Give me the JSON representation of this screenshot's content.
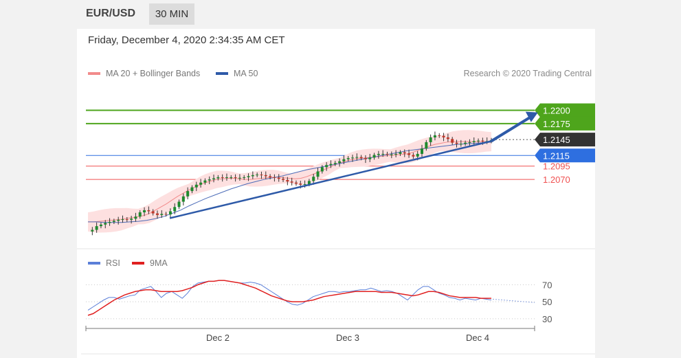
{
  "header": {
    "pair": "EUR/USD",
    "timeframe": "30 MIN"
  },
  "timestamp": "Friday, December 4, 2020 2:34:35 AM CET",
  "legend": {
    "ma20": {
      "label": "MA 20 + Bollinger Bands",
      "color": "#f28b8b"
    },
    "ma50": {
      "label": "MA 50",
      "color": "#2e5aa8"
    },
    "credit": "Research © 2020 Trading Central"
  },
  "rsi_legend": {
    "rsi": {
      "label": "RSI",
      "color": "#5b7fd8"
    },
    "ma9": {
      "label": "9MA",
      "color": "#e02020"
    }
  },
  "chart_data": [
    {
      "type": "candlestick",
      "x_ticks": [
        "Dec 2",
        "Dec 3",
        "Dec 4"
      ],
      "ylim": [
        1.1955,
        1.2255
      ],
      "levels": [
        {
          "value": "1.2200",
          "color": "#4ea51c",
          "kind": "resistance"
        },
        {
          "value": "1.2175",
          "color": "#4ea51c",
          "kind": "resistance"
        },
        {
          "value": "1.2145",
          "color": "#333333",
          "kind": "last"
        },
        {
          "value": "1.2115",
          "color": "#2e6fe0",
          "kind": "pivot"
        },
        {
          "value": "1.2095",
          "color": "#f05050",
          "kind": "support"
        },
        {
          "value": "1.2070",
          "color": "#f05050",
          "kind": "support"
        }
      ],
      "price_path": [
        1.1972,
        1.1975,
        1.1982,
        1.1985,
        1.1988,
        1.199,
        1.1992,
        1.1994,
        1.1995,
        1.1994,
        1.1996,
        1.2,
        1.2008,
        1.2012,
        1.201,
        1.2006,
        1.2003,
        1.2005,
        1.2004,
        1.201,
        1.2018,
        1.2028,
        1.2038,
        1.2048,
        1.2055,
        1.206,
        1.2064,
        1.2068,
        1.207,
        1.2072,
        1.2074,
        1.2073,
        1.2074,
        1.2074,
        1.2073,
        1.2073,
        1.2074,
        1.2076,
        1.2078,
        1.2079,
        1.2078,
        1.2076,
        1.2074,
        1.2073,
        1.2071,
        1.2069,
        1.2066,
        1.2064,
        1.2062,
        1.206,
        1.2061,
        1.2067,
        1.2075,
        1.2085,
        1.2093,
        1.2097,
        1.2099,
        1.2101,
        1.2104,
        1.2108,
        1.211,
        1.2111,
        1.2112,
        1.211,
        1.2108,
        1.2111,
        1.2116,
        1.2118,
        1.2118,
        1.2117,
        1.2117,
        1.2118,
        1.2121,
        1.2119,
        1.2116,
        1.2113,
        1.2118,
        1.2128,
        1.214,
        1.2149,
        1.2153,
        1.2152,
        1.2149,
        1.2146,
        1.2139,
        1.2137,
        1.2137,
        1.2139,
        1.214,
        1.2142,
        1.2143,
        1.2142,
        1.2142,
        1.2144
      ],
      "ma20_path": [
        1.199,
        1.199,
        1.1991,
        1.1992,
        1.1993,
        1.1994,
        1.1995,
        1.1997,
        1.1998,
        1.2,
        1.2002,
        1.2006,
        1.2012,
        1.2018,
        1.2024,
        1.2031,
        1.2038,
        1.2044,
        1.205,
        1.2055,
        1.206,
        1.2064,
        1.2067,
        1.207,
        1.2071,
        1.2072,
        1.2072,
        1.2071,
        1.207,
        1.207,
        1.2071,
        1.2072,
        1.2073,
        1.2074,
        1.2074,
        1.2073,
        1.2072,
        1.2071,
        1.2072,
        1.2075,
        1.2079,
        1.2083,
        1.2088,
        1.2092,
        1.2097,
        1.2101,
        1.2104,
        1.2107,
        1.2109,
        1.211,
        1.2111,
        1.2112,
        1.2113,
        1.2114,
        1.2115,
        1.2116,
        1.2117,
        1.2118,
        1.2121,
        1.2125,
        1.2129,
        1.2133,
        1.2136,
        1.2138,
        1.214,
        1.2141,
        1.2141,
        1.2141,
        1.2141,
        1.2141,
        1.2141,
        1.2141,
        1.2141
      ],
      "ma50_path": [
        1.199,
        1.199,
        1.1989,
        1.1989,
        1.1989,
        1.199,
        1.1991,
        1.1993,
        1.1996,
        1.2,
        1.2006,
        1.2012,
        1.202,
        1.2027,
        1.2034,
        1.204,
        1.2046,
        1.2052,
        1.2057,
        1.2062,
        1.2066,
        1.207,
        1.2073,
        1.2076,
        1.208,
        1.2084,
        1.2088,
        1.2091,
        1.2094,
        1.2097,
        1.21,
        1.2103,
        1.2106,
        1.2109,
        1.2112,
        1.2115,
        1.2118,
        1.2121,
        1.2124,
        1.2126,
        1.2128,
        1.213,
        1.2132,
        1.2134,
        1.2136,
        1.2137,
        1.2138,
        1.2139,
        1.214
      ],
      "trendline": [
        [
          0.18,
          1.1997
        ],
        [
          0.87,
          1.2142
        ]
      ],
      "projection": [
        [
          0.87,
          1.2142
        ],
        [
          0.97,
          1.2196
        ]
      ]
    },
    {
      "type": "line",
      "ylim": [
        25,
        80
      ],
      "y_ticks": [
        "70",
        "50",
        "30"
      ],
      "series": [
        {
          "name": "RSI",
          "values": [
            40,
            44,
            48,
            52,
            55,
            55,
            53,
            55,
            57,
            58,
            64,
            66,
            68,
            62,
            55,
            60,
            62,
            58,
            54,
            60,
            68,
            72,
            73,
            74,
            74,
            75,
            75,
            74,
            73,
            72,
            72,
            73,
            72,
            70,
            66,
            62,
            58,
            54,
            50,
            47,
            46,
            48,
            52,
            56,
            58,
            60,
            62,
            62,
            61,
            62,
            62,
            63,
            64,
            64,
            66,
            64,
            62,
            63,
            62,
            60,
            56,
            52,
            58,
            64,
            68,
            68,
            64,
            60,
            58,
            55,
            54,
            52,
            54,
            53,
            52,
            54,
            53,
            52
          ]
        },
        {
          "name": "9MA",
          "values": [
            34,
            36,
            40,
            44,
            48,
            52,
            55,
            58,
            60,
            62,
            63,
            64,
            64,
            63,
            62,
            62,
            62,
            62,
            63,
            65,
            67,
            70,
            72,
            74,
            74,
            75,
            75,
            74,
            73,
            72,
            70,
            68,
            66,
            63,
            60,
            57,
            55,
            53,
            51,
            50,
            50,
            50,
            51,
            52,
            54,
            56,
            57,
            58,
            59,
            60,
            61,
            62,
            62,
            62,
            62,
            62,
            61,
            61,
            61,
            60,
            59,
            58,
            57,
            58,
            60,
            62,
            62,
            61,
            59,
            57,
            56,
            55,
            55,
            55,
            55,
            54,
            54,
            54
          ]
        }
      ]
    }
  ]
}
